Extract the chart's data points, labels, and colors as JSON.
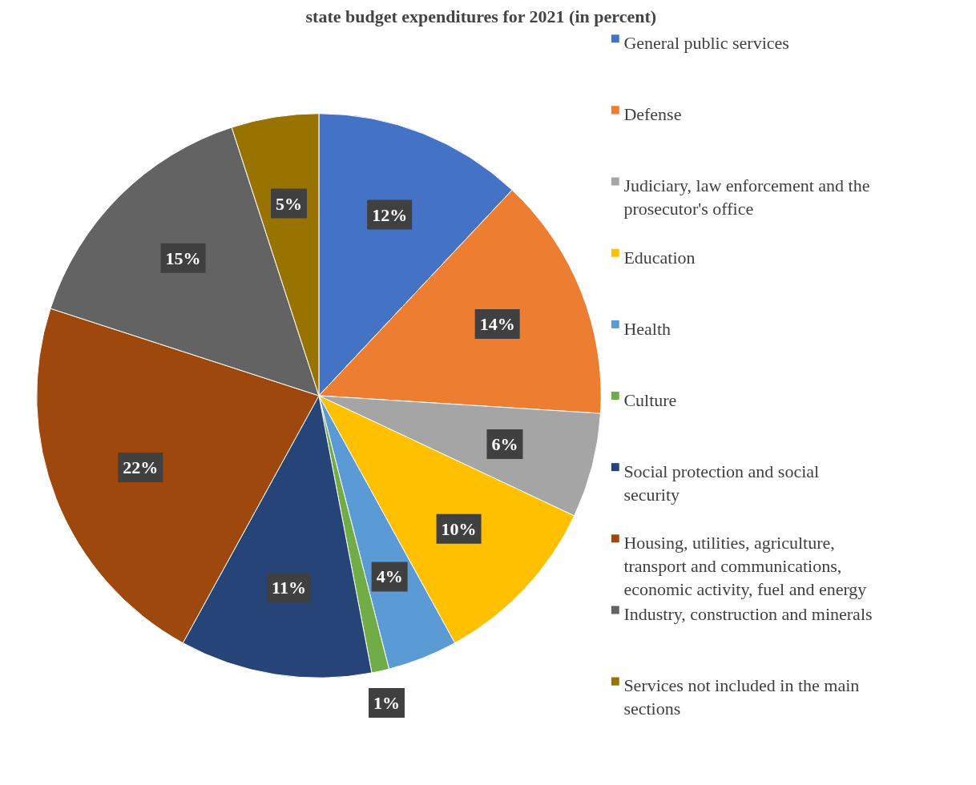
{
  "chart_data": {
    "type": "pie",
    "title": "state budget expenditures for 2021 (in percent)",
    "categories": [
      "General public services",
      "Defense",
      "Judiciary, law enforcement and the prosecutor's office",
      "Education",
      "Health",
      "Culture",
      "Social protection and social security",
      "Housing, utilities, agriculture, transport and communications, economic activity, fuel and energy",
      "Industry, construction and minerals",
      "Services not included in the main sections"
    ],
    "values": [
      12,
      14,
      6,
      10,
      4,
      1,
      11,
      22,
      15,
      5
    ],
    "colors": [
      "#4472c4",
      "#ed7d31",
      "#a5a5a5",
      "#ffc000",
      "#5b9bd5",
      "#70ad47",
      "#264478",
      "#9e480e",
      "#636363",
      "#997300"
    ],
    "value_labels": [
      "12%",
      "14%",
      "6%",
      "10%",
      "4%",
      "1%",
      "11%",
      "22%",
      "15%",
      "5%"
    ],
    "legend": "right"
  }
}
